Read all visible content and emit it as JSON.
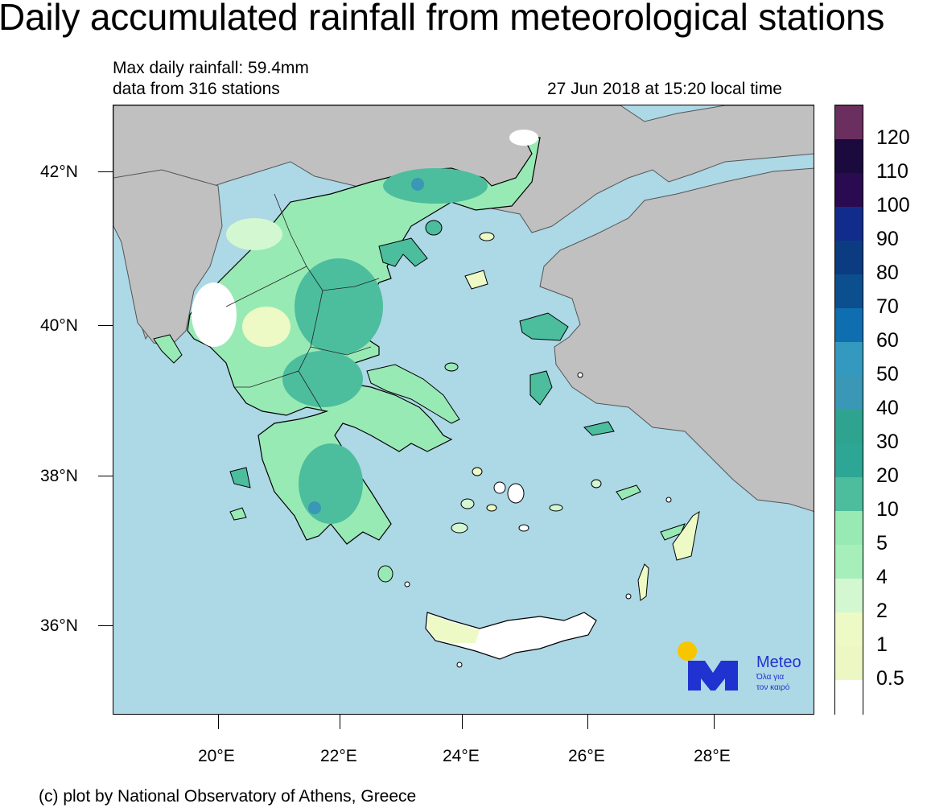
{
  "title": "Daily accumulated rainfall from meteorological stations",
  "info": {
    "max_rainfall": "Max daily rainfall: 59.4mm",
    "stations": "data from 316 stations",
    "timestamp": "27 Jun 2018 at 15:20 local time"
  },
  "axes": {
    "lat_ticks": [
      "42°N",
      "40°N",
      "38°N",
      "36°N"
    ],
    "lon_ticks": [
      "20°E",
      "22°E",
      "24°E",
      "26°E",
      "28°E"
    ]
  },
  "legend": {
    "labels": [
      "120",
      "110",
      "100",
      "90",
      "80",
      "70",
      "60",
      "50",
      "40",
      "30",
      "20",
      "10",
      "5",
      "4",
      "2",
      "1",
      "0.5"
    ],
    "colors": [
      "#6b2f5f",
      "#1b0a3d",
      "#2a0a50",
      "#122c8c",
      "#0b3c82",
      "#0b4f8f",
      "#0f6eaf",
      "#3399bf",
      "#3a97b5",
      "#2ea38f",
      "#2ea695",
      "#4cbe9e",
      "#98eab4",
      "#a6efbb",
      "#d3f7d1",
      "#edfac5",
      "#ecf7c4",
      "#ffffff"
    ]
  },
  "logo": {
    "name": "Meteo",
    "tagline_1": "Όλα για",
    "tagline_2": "τον καιρό"
  },
  "credit": "(c) plot by National Observatory of Athens, Greece"
}
